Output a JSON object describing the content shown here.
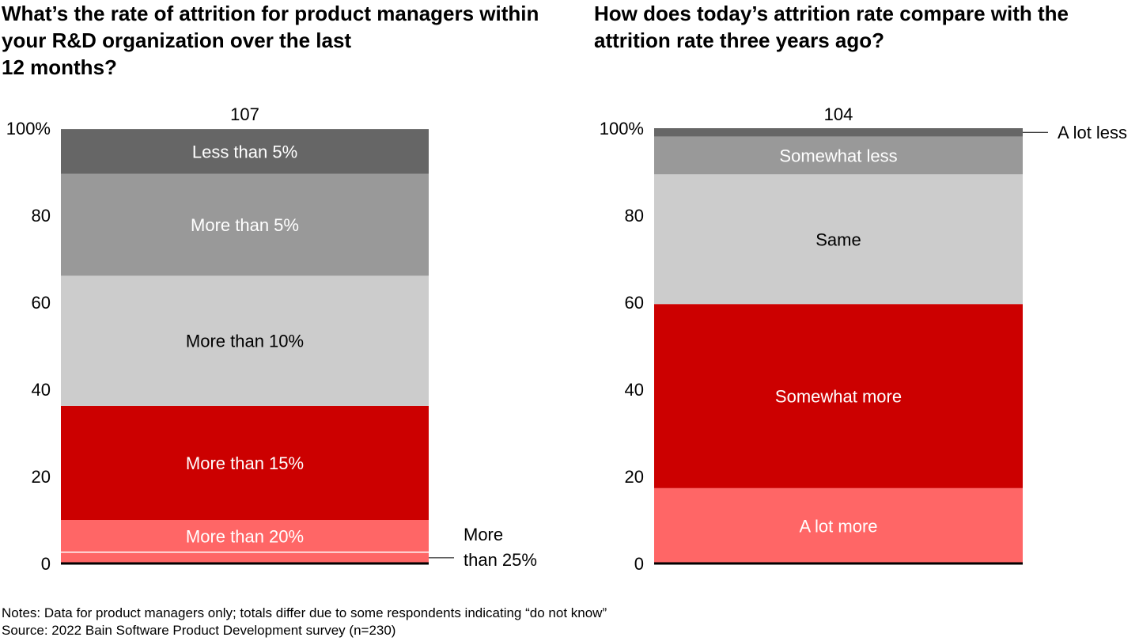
{
  "titles": {
    "left": "What’s the rate of attrition for product managers within your R&D organization over the last\n12 months?",
    "right": "How does today’s attrition rate compare with the attrition rate three years ago?"
  },
  "notes": "Notes: Data for product managers only; totals differ due to some respondents indicating “do not know”",
  "source": "Source: 2022 Bain Software Product Development survey (n=230)",
  "chart_data": [
    {
      "type": "bar",
      "stacked": true,
      "title": "What’s the rate of attrition for product managers within your R&D organization over the last 12 months?",
      "ylim": [
        0,
        100
      ],
      "yticks": [
        "0",
        "20",
        "40",
        "60",
        "80",
        "100%"
      ],
      "total_label": "107",
      "segments": [
        {
          "name": "More than 25%",
          "value": 2.6,
          "color": "#ff6666",
          "label_outside": true,
          "label_lines": [
            "More",
            "than 25%"
          ]
        },
        {
          "name": "More than 20%",
          "value": 7.4,
          "color": "#ff6666",
          "text_color": "#ffffff"
        },
        {
          "name": "More than 15%",
          "value": 26.2,
          "color": "#cc0000",
          "text_color": "#ffffff"
        },
        {
          "name": "More than 10%",
          "value": 29.9,
          "color": "#cccccc",
          "text_color": "#000000"
        },
        {
          "name": "More than 5%",
          "value": 23.4,
          "color": "#999999",
          "text_color": "#ffffff"
        },
        {
          "name": "Less than 5%",
          "value": 10.3,
          "color": "#666666",
          "text_color": "#ffffff"
        }
      ]
    },
    {
      "type": "bar",
      "stacked": true,
      "title": "How does today’s attrition rate compare with the attrition rate three years ago?",
      "ylim": [
        0,
        100
      ],
      "yticks": [
        "0",
        "20",
        "40",
        "60",
        "80",
        "100%"
      ],
      "total_label": "104",
      "segments": [
        {
          "name": "A lot more",
          "value": 17.3,
          "color": "#ff6666",
          "text_color": "#ffffff"
        },
        {
          "name": "Somewhat more",
          "value": 42.3,
          "color": "#cc0000",
          "text_color": "#ffffff"
        },
        {
          "name": "Same",
          "value": 29.8,
          "color": "#cccccc",
          "text_color": "#000000"
        },
        {
          "name": "Somewhat less",
          "value": 8.7,
          "color": "#999999",
          "text_color": "#ffffff"
        },
        {
          "name": "A lot less",
          "value": 1.9,
          "color": "#666666",
          "label_outside": true,
          "label_lines": [
            "A lot less"
          ]
        }
      ]
    }
  ]
}
